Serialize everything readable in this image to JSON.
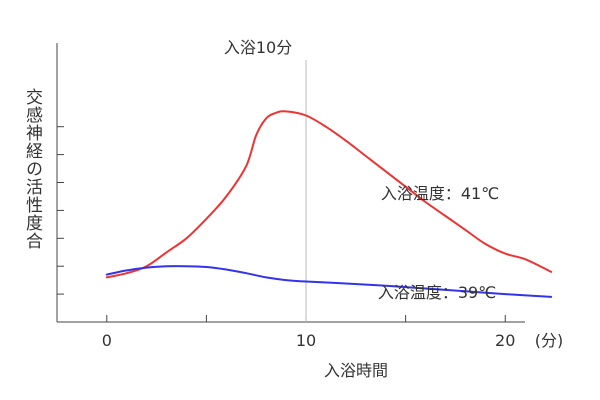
{
  "chart_data": {
    "type": "line",
    "ylabel": "交感神経の活性度合",
    "xlabel": "入浴時間",
    "x_unit": "(分)",
    "xlim": [
      -2.5,
      23
    ],
    "ylim": [
      0,
      10
    ],
    "x_ticks": [
      0,
      5,
      10,
      15,
      20
    ],
    "x_tick_labels": [
      "0",
      "10",
      "20"
    ],
    "x_tick_label_values": [
      0,
      10,
      20
    ],
    "y_ticks": [
      1,
      2,
      3,
      4,
      5,
      6,
      7
    ],
    "grid": false,
    "annotation": {
      "label": "入浴10分",
      "x": 10
    },
    "series": [
      {
        "name": "入浴温度：41℃",
        "color": "#ee3333",
        "x": [
          0,
          1,
          2,
          3,
          4,
          5,
          6,
          7,
          7.5,
          8,
          8.5,
          9,
          10,
          11,
          12,
          13,
          14,
          15,
          16,
          17,
          18,
          19,
          20,
          21,
          22.3
        ],
        "y": [
          1.6,
          1.75,
          2.0,
          2.5,
          3.0,
          3.7,
          4.5,
          5.6,
          6.7,
          7.3,
          7.5,
          7.55,
          7.4,
          7.0,
          6.5,
          5.95,
          5.4,
          4.85,
          4.3,
          3.8,
          3.3,
          2.8,
          2.45,
          2.25,
          1.8
        ]
      },
      {
        "name": "入浴温度：39℃",
        "color": "#3333ee",
        "x": [
          0,
          1,
          2,
          3,
          4,
          5,
          6,
          7,
          8,
          9,
          10,
          12,
          14,
          16,
          18,
          20,
          22.3
        ],
        "y": [
          1.7,
          1.85,
          1.95,
          2.0,
          2.0,
          1.97,
          1.88,
          1.75,
          1.6,
          1.5,
          1.45,
          1.38,
          1.3,
          1.2,
          1.1,
          1.0,
          0.9
        ]
      }
    ]
  }
}
